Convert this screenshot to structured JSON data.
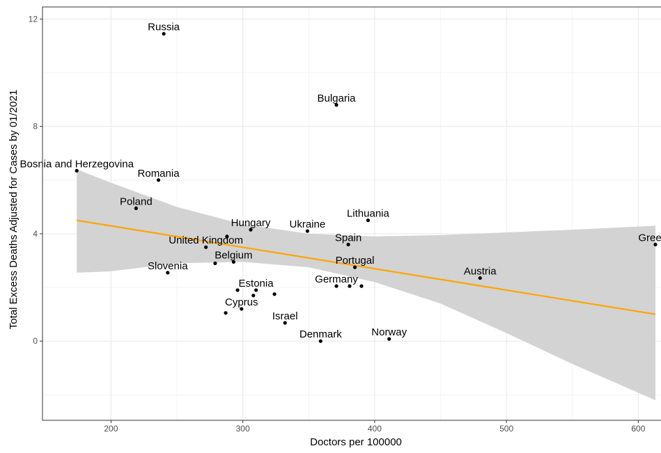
{
  "chart_data": {
    "type": "scatter",
    "xlabel": "Doctors per 100000",
    "ylabel": "Total Excess Deaths Adjusted for Cases by 01/2021",
    "xlim": [
      148,
      622
    ],
    "ylim": [
      -2.95,
      12.45
    ],
    "x_ticks": [
      200,
      300,
      400,
      500,
      600
    ],
    "x_minor": [
      250,
      350,
      450,
      550
    ],
    "y_ticks": [
      0,
      4,
      8,
      12
    ],
    "y_minor": [
      -2,
      2,
      6,
      10
    ],
    "grid": true,
    "points": [
      {
        "x": 240,
        "y": 11.45,
        "label": "Russia"
      },
      {
        "x": 371,
        "y": 8.8,
        "label": "Bulgaria"
      },
      {
        "x": 174,
        "y": 6.35,
        "label": "Bosnia and Herzegovina"
      },
      {
        "x": 236,
        "y": 6.0,
        "label": "Romania"
      },
      {
        "x": 219,
        "y": 4.95,
        "label": "Poland"
      },
      {
        "x": 395,
        "y": 4.5,
        "label": "Lithuania"
      },
      {
        "x": 349,
        "y": 4.1,
        "label": "Ukraine"
      },
      {
        "x": 306,
        "y": 4.15,
        "label": "Hungary"
      },
      {
        "x": 288,
        "y": 3.9,
        "label": ""
      },
      {
        "x": 272,
        "y": 3.5,
        "label": "United Kingdom"
      },
      {
        "x": 380,
        "y": 3.6,
        "label": "Spain"
      },
      {
        "x": 613,
        "y": 3.6,
        "label": "Greece"
      },
      {
        "x": 293,
        "y": 2.95,
        "label": "Belgium"
      },
      {
        "x": 279,
        "y": 2.9,
        "label": ""
      },
      {
        "x": 385,
        "y": 2.75,
        "label": "Portugal"
      },
      {
        "x": 243,
        "y": 2.55,
        "label": "Slovenia"
      },
      {
        "x": 480,
        "y": 2.35,
        "label": "Austria"
      },
      {
        "x": 371,
        "y": 2.05,
        "label": "Germany"
      },
      {
        "x": 381,
        "y": 2.05,
        "label": ""
      },
      {
        "x": 390,
        "y": 2.05,
        "label": ""
      },
      {
        "x": 296,
        "y": 1.9,
        "label": ""
      },
      {
        "x": 310,
        "y": 1.9,
        "label": "Estonia"
      },
      {
        "x": 308,
        "y": 1.7,
        "label": ""
      },
      {
        "x": 324,
        "y": 1.75,
        "label": ""
      },
      {
        "x": 299,
        "y": 1.2,
        "label": "Cyprus"
      },
      {
        "x": 287,
        "y": 1.05,
        "label": ""
      },
      {
        "x": 332,
        "y": 0.68,
        "label": "Israel"
      },
      {
        "x": 359,
        "y": 0.0,
        "label": "Denmark"
      },
      {
        "x": 411,
        "y": 0.08,
        "label": "Norway"
      }
    ],
    "fit_line": {
      "x": [
        174,
        613
      ],
      "y": [
        4.5,
        1.0
      ],
      "color": "#FFA500"
    },
    "confidence_band": {
      "x": [
        174,
        200,
        250,
        300,
        350,
        400,
        450,
        500,
        550,
        613
      ],
      "upper": [
        6.4,
        5.9,
        5.0,
        4.35,
        4.0,
        3.9,
        3.95,
        4.05,
        4.15,
        4.3
      ],
      "lower": [
        2.55,
        2.6,
        2.9,
        2.95,
        2.75,
        2.2,
        1.4,
        0.3,
        -0.85,
        -2.2
      ],
      "color": "#D3D3D3"
    },
    "colors": {
      "point": "#000000",
      "grid": "#EBEBEB",
      "panel_border": "#333333",
      "tick_text": "#4D4D4D"
    }
  }
}
